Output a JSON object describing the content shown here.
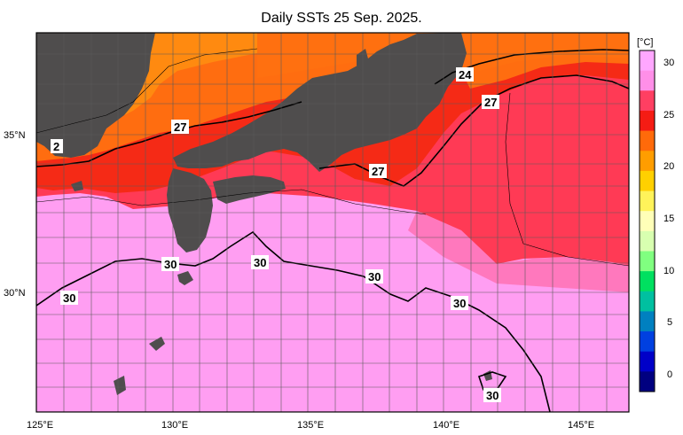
{
  "title": "Daily SSTs 25 Sep. 2025.",
  "map": {
    "lon_labels": [
      "125°E",
      "130°E",
      "135°E",
      "140°E",
      "145°E"
    ],
    "lat_labels": [
      "35°N",
      "30°N"
    ],
    "contour_labels": [
      "24",
      "27",
      "27",
      "27",
      "2",
      "30",
      "30",
      "30",
      "30",
      "30",
      "30"
    ],
    "colors": {
      "land": "#4f4d4d",
      "warm_sea": "#ff9ef2",
      "hot_sea": "#ff3a55",
      "mid_sea": "#f82b1b",
      "orange_sea": "#ff6d10",
      "grid": "#5a5a5a"
    }
  },
  "colorbar": {
    "unit": "[°C]",
    "ticks": [
      "30",
      "25",
      "20",
      "15",
      "10",
      "5",
      "0"
    ],
    "colors": [
      "#ffa7ff",
      "#ff8fe8",
      "#ff3f62",
      "#f51c14",
      "#ff6a0a",
      "#ff9d00",
      "#ffd000",
      "#fff35a",
      "#ffffb8",
      "#d8ffb0",
      "#80ff80",
      "#00e060",
      "#00c0a0",
      "#0080c0",
      "#0040e0",
      "#0000c8",
      "#000080"
    ]
  }
}
